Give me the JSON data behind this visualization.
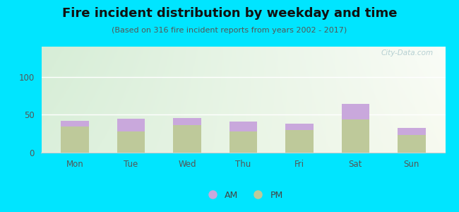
{
  "title": "Fire incident distribution by weekday and time",
  "subtitle": "(Based on 316 fire incident reports from years 2002 - 2017)",
  "days": [
    "Mon",
    "Tue",
    "Wed",
    "Thu",
    "Fri",
    "Sat",
    "Sun"
  ],
  "pm_values": [
    35,
    28,
    36,
    28,
    30,
    44,
    23
  ],
  "am_values": [
    7,
    17,
    10,
    13,
    8,
    20,
    10
  ],
  "am_color": "#c9a8dc",
  "pm_color": "#bec99a",
  "background_outer": "#00e5ff",
  "ylim": [
    0,
    140
  ],
  "yticks": [
    0,
    50,
    100
  ],
  "bar_width": 0.5,
  "title_fontsize": 13,
  "subtitle_fontsize": 8,
  "tick_fontsize": 8.5,
  "legend_fontsize": 9,
  "watermark": "City-Data.com"
}
